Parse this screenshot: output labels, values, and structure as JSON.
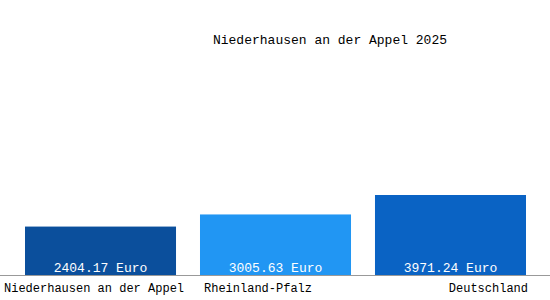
{
  "chart_data": {
    "type": "bar",
    "title": "Niederhausen an der Appel 2025",
    "categories": [
      "Niederhausen an der Appel",
      "Rheinland-Pfalz",
      "Deutschland"
    ],
    "values": [
      2404.17,
      3005.63,
      3971.24
    ],
    "value_labels": [
      "2404.17 Euro",
      "3005.63 Euro",
      "3971.24 Euro"
    ],
    "colors": [
      "#0b4f9c",
      "#2196f3",
      "#0a63c4"
    ],
    "data_labels": true,
    "tick_labels": "x"
  }
}
